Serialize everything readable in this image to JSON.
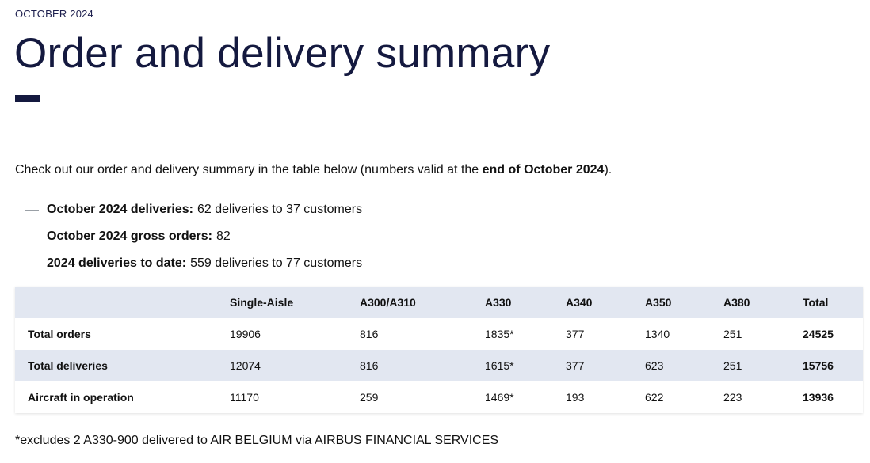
{
  "header": {
    "eyebrow": "OCTOBER 2024",
    "title": "Order and delivery summary"
  },
  "intro": {
    "before": "Check out our order and delivery summary in the table below (numbers valid at the ",
    "emphasis": "end of October 2024",
    "after": ")."
  },
  "bullets": [
    {
      "label": "October 2024 deliveries:",
      "value": "62 deliveries to 37 customers"
    },
    {
      "label": "October 2024 gross orders:",
      "value": "82"
    },
    {
      "label": "2024 deliveries to date:",
      "value": "559 deliveries to 77 customers"
    }
  ],
  "table": {
    "headers": [
      "",
      "Single-Aisle",
      "A300/A310",
      "A330",
      "A340",
      "A350",
      "A380",
      "Total"
    ],
    "rows": [
      {
        "label": "Total orders",
        "cells": [
          "19906",
          "816",
          "1835*",
          "377",
          "1340",
          "251",
          "24525"
        ]
      },
      {
        "label": "Total deliveries",
        "cells": [
          "12074",
          "816",
          "1615*",
          "377",
          "623",
          "251",
          "15756"
        ]
      },
      {
        "label": "Aircraft in operation",
        "cells": [
          "11170",
          "259",
          "1469*",
          "193",
          "622",
          "223",
          "13936"
        ]
      }
    ]
  },
  "footnote": "*excludes 2 A330-900 delivered to AIR BELGIUM via AIRBUS FINANCIAL SERVICES",
  "colors": {
    "title": "#14193f",
    "table_header_bg": "#e2e7f1"
  }
}
